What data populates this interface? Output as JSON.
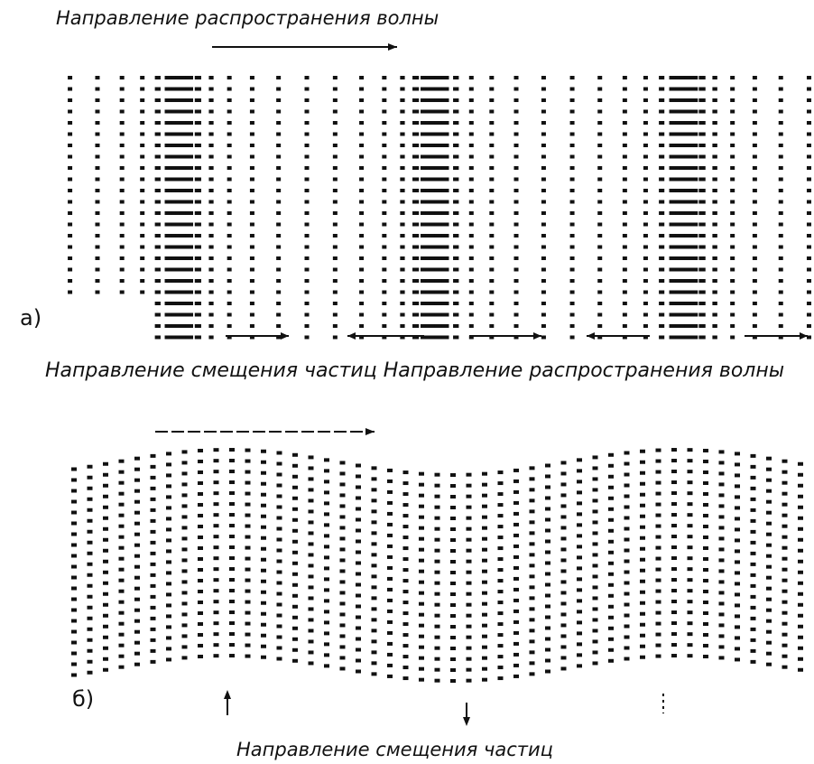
{
  "panel_a": {
    "wave_direction": "Направление распространения волны",
    "label": "а)",
    "particle_direction": "Направление смещения частиц"
  },
  "panel_b": {
    "wave_direction": "Направление распространения волны",
    "label": "б)",
    "particle_direction": "Направление смещения частиц"
  }
}
